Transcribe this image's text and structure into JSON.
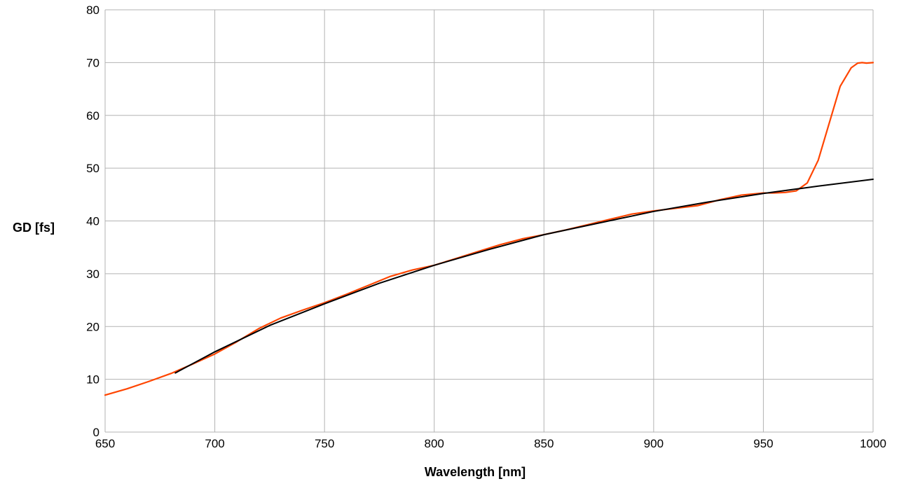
{
  "chart_data": {
    "type": "line",
    "title": "",
    "xlabel": "Wavelength [nm]",
    "ylabel": "GD [fs]",
    "xlim": [
      650,
      1000
    ],
    "ylim": [
      0,
      80
    ],
    "xticks": [
      650,
      700,
      750,
      800,
      850,
      900,
      950,
      1000
    ],
    "yticks": [
      0,
      10,
      20,
      30,
      40,
      50,
      60,
      70,
      80
    ],
    "grid": true,
    "legend": "none",
    "series": [
      {
        "color": "#ff4500",
        "x": [
          650,
          660,
          670,
          680,
          690,
          700,
          710,
          720,
          730,
          740,
          750,
          760,
          770,
          780,
          790,
          800,
          810,
          820,
          830,
          840,
          850,
          860,
          870,
          880,
          890,
          900,
          910,
          920,
          930,
          940,
          950,
          955,
          960,
          965,
          970,
          975,
          980,
          985,
          990,
          993,
          995,
          997,
          1000
        ],
        "y": [
          7.0,
          8.2,
          9.6,
          11.1,
          12.9,
          14.8,
          17.1,
          19.6,
          21.6,
          23.1,
          24.5,
          26.1,
          27.8,
          29.5,
          30.7,
          31.6,
          32.9,
          34.2,
          35.5,
          36.6,
          37.4,
          38.3,
          39.3,
          40.3,
          41.3,
          41.9,
          42.4,
          42.9,
          44.0,
          44.9,
          45.3,
          45.3,
          45.4,
          45.7,
          47.2,
          51.5,
          58.5,
          65.5,
          69.0,
          69.9,
          70.0,
          69.9,
          70.0
        ]
      },
      {
        "color": "#000000",
        "x": [
          682,
          700,
          725,
          750,
          775,
          800,
          825,
          850,
          875,
          900,
          925,
          950,
          975,
          1000
        ],
        "y": [
          11.2,
          15.2,
          20.2,
          24.3,
          28.2,
          31.6,
          34.6,
          37.4,
          39.6,
          41.8,
          43.6,
          45.2,
          46.6,
          47.9
        ]
      }
    ]
  }
}
